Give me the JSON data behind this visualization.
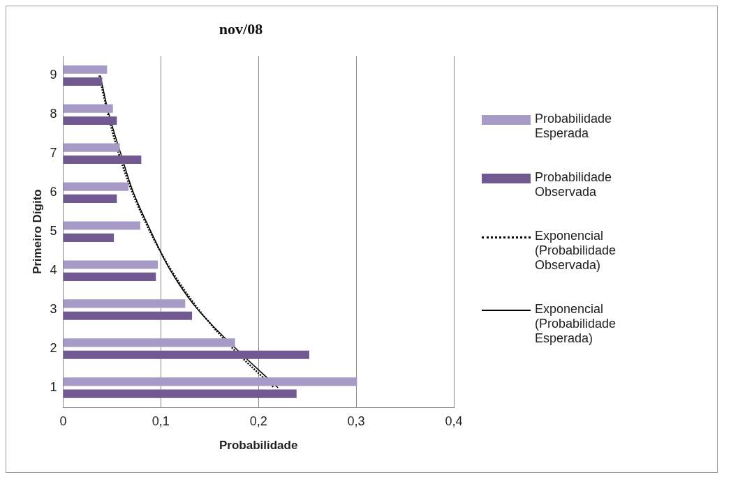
{
  "chart_data": {
    "type": "bar",
    "orientation": "horizontal",
    "title": "nov/08",
    "xlabel": "Probabilidade",
    "ylabel": "Primeiro Dígito",
    "categories": [
      "9",
      "8",
      "7",
      "6",
      "5",
      "4",
      "3",
      "2",
      "1"
    ],
    "series": [
      {
        "name": "Probabilidade Esperada",
        "color": "#a89ac6",
        "values": [
          0.045,
          0.051,
          0.058,
          0.067,
          0.079,
          0.097,
          0.125,
          0.176,
          0.301
        ]
      },
      {
        "name": "Probabilidade Observada",
        "color": "#705a91",
        "values": [
          0.04,
          0.055,
          0.08,
          0.055,
          0.052,
          0.095,
          0.132,
          0.252,
          0.239
        ]
      },
      {
        "name": "Exponencial (Probabilidade Observada)",
        "type": "line",
        "line_style": "dotted",
        "color": "#000000",
        "values": [
          0.037,
          0.046,
          0.057,
          0.071,
          0.089,
          0.111,
          0.139,
          0.174,
          0.216
        ]
      },
      {
        "name": "Exponencial (Probabilidade Esperada)",
        "type": "line",
        "line_style": "solid",
        "color": "#000000",
        "values": [
          0.038,
          0.047,
          0.059,
          0.072,
          0.09,
          0.11,
          0.138,
          0.177,
          0.22
        ]
      }
    ],
    "xlim": [
      0,
      0.4
    ],
    "xticks": [
      0,
      {
        "value": 0.1,
        "label": "0,1"
      },
      {
        "value": 0.2,
        "label": "0,2"
      },
      {
        "value": 0.3,
        "label": "0,3"
      },
      {
        "value": 0.4,
        "label": "0,4"
      }
    ],
    "grid": "x",
    "legend": "right",
    "marker": "none"
  }
}
